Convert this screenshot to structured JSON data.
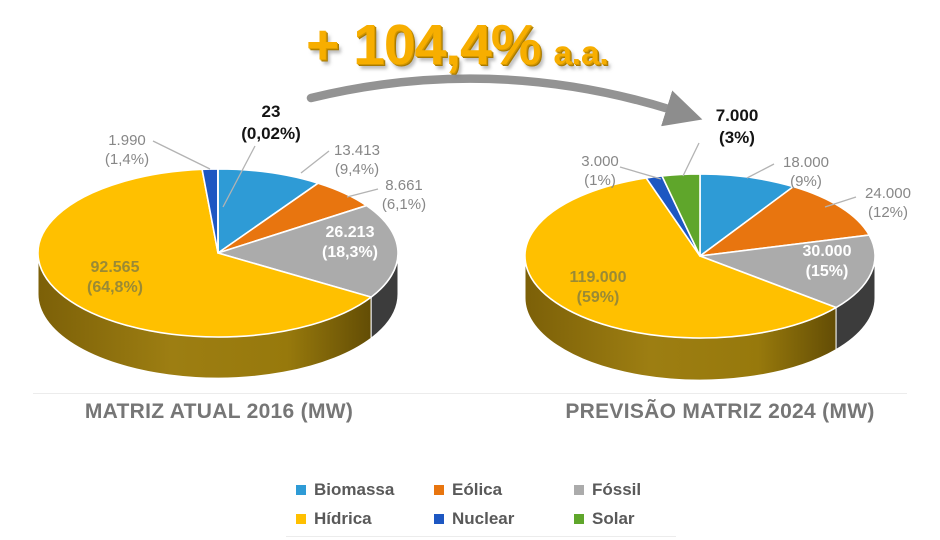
{
  "headline": {
    "value": "+ 104,4%",
    "suffix": "a.a."
  },
  "legend": {
    "items": [
      {
        "label": "Biomassa",
        "color": "#2E9BD6"
      },
      {
        "label": "Eólica",
        "color": "#E8750F"
      },
      {
        "label": "Fóssil",
        "color": "#ABABAB"
      },
      {
        "label": "Hídrica",
        "color": "#FFC000"
      },
      {
        "label": "Nuclear",
        "color": "#1D57C2"
      },
      {
        "label": "Solar",
        "color": "#5FA62B"
      }
    ]
  },
  "colors": {
    "hidrica_side": "#8F7000",
    "fossil_side": "#3C3C3C",
    "arrow": "#8F8F8F",
    "headline_gold": "#F7AE00",
    "label_gray": "#878787",
    "title_gray": "#767676"
  },
  "chart_data": [
    {
      "type": "pie",
      "title": "MATRIZ ATUAL 2016 (MW)",
      "unit": "MW",
      "categories": [
        "Biomassa",
        "Eólica",
        "Fóssil",
        "Hídrica",
        "Nuclear",
        "Solar"
      ],
      "values": [
        13413,
        8661,
        26213,
        92565,
        1990,
        23
      ],
      "percentages": [
        9.4,
        6.1,
        18.3,
        64.8,
        1.4,
        0.02
      ],
      "labels": [
        {
          "value": "13.413",
          "pct": "(9,4%)"
        },
        {
          "value": "8.661",
          "pct": "(6,1%)"
        },
        {
          "value": "26.213",
          "pct": "(18,3%)"
        },
        {
          "value": "92.565",
          "pct": "(64,8%)"
        },
        {
          "value": "1.990",
          "pct": "(1,4%)"
        },
        {
          "value": "23",
          "pct": "(0,02%)"
        }
      ]
    },
    {
      "type": "pie",
      "title": "PREVISÃO MATRIZ 2024 (MW)",
      "unit": "MW",
      "categories": [
        "Biomassa",
        "Eólica",
        "Fóssil",
        "Hídrica",
        "Nuclear",
        "Solar"
      ],
      "values": [
        18000,
        24000,
        30000,
        119000,
        3000,
        7000
      ],
      "percentages": [
        9,
        12,
        15,
        59,
        1,
        3
      ],
      "labels": [
        {
          "value": "18.000",
          "pct": "(9%)"
        },
        {
          "value": "24.000",
          "pct": "(12%)"
        },
        {
          "value": "30.000",
          "pct": "(15%)"
        },
        {
          "value": "119.000",
          "pct": "(59%)"
        },
        {
          "value": "3.000",
          "pct": "(1%)"
        },
        {
          "value": "7.000",
          "pct": "(3%)"
        }
      ]
    }
  ]
}
